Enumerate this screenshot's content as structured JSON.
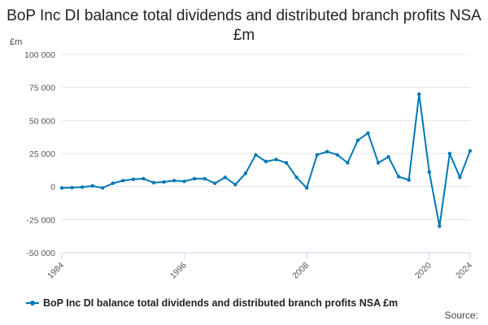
{
  "chart_data": {
    "type": "line",
    "title": "BoP Inc DI balance total dividends and distributed branch profits NSA £m",
    "ylabel": "£m",
    "xlabel": "",
    "ylim": [
      -50000,
      100000
    ],
    "xlim": [
      1984,
      2024
    ],
    "yticks": [
      100000,
      75000,
      50000,
      25000,
      0,
      -25000,
      -50000
    ],
    "ytick_labels": [
      "100 000",
      "75 000",
      "50 000",
      "25 000",
      "0",
      "-25 000",
      "-50 000"
    ],
    "xticks": [
      1984,
      1996,
      2008,
      2020,
      2024
    ],
    "xtick_labels": [
      "1984",
      "1996",
      "2008",
      "2020",
      "2024"
    ],
    "grid": true,
    "legend_position": "bottom",
    "series": [
      {
        "name": "BoP Inc DI balance total dividends and distributed branch profits NSA £m",
        "color": "#0077b6",
        "x": [
          1984,
          1985,
          1986,
          1987,
          1988,
          1989,
          1990,
          1991,
          1992,
          1993,
          1994,
          1995,
          1996,
          1997,
          1998,
          1999,
          2000,
          2001,
          2002,
          2003,
          2004,
          2005,
          2006,
          2007,
          2008,
          2009,
          2010,
          2011,
          2012,
          2013,
          2014,
          2015,
          2016,
          2017,
          2018,
          2019,
          2020,
          2021,
          2022,
          2023,
          2024
        ],
        "values": [
          -1000,
          -800,
          -400,
          500,
          -1000,
          2500,
          4500,
          5500,
          6000,
          3000,
          3500,
          4500,
          4000,
          6000,
          6000,
          2500,
          7000,
          1500,
          10000,
          24000,
          19000,
          20500,
          18000,
          7000,
          -1000,
          24000,
          26500,
          24000,
          18000,
          35000,
          40500,
          18000,
          22500,
          7500,
          5000,
          70000,
          11000,
          -30000,
          25000,
          7000,
          27000
        ]
      }
    ],
    "legend": "BoP Inc DI balance total dividends and distributed branch profits NSA £m",
    "source": "Source:"
  }
}
